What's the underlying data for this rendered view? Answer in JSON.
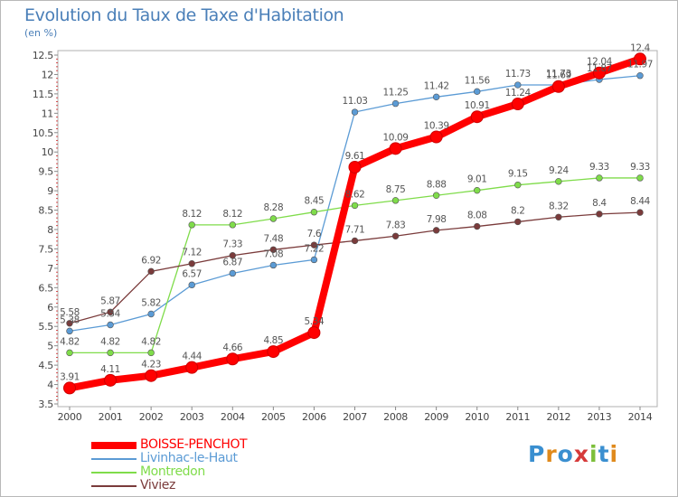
{
  "header": {
    "title": "Evolution du Taux de Taxe d'Habitation",
    "subtitle": "(en %)"
  },
  "logo": {
    "text": "Proxiti",
    "letters": [
      {
        "ch": "P",
        "color": "#3a8fd0"
      },
      {
        "ch": "r",
        "color": "#e08a1c"
      },
      {
        "ch": "o",
        "color": "#3a8fd0"
      },
      {
        "ch": "x",
        "color": "#d63a3a"
      },
      {
        "ch": "i",
        "color": "#7cbf3a"
      },
      {
        "ch": "t",
        "color": "#3a8fd0"
      },
      {
        "ch": "i",
        "color": "#e08a1c"
      }
    ]
  },
  "chart_data": {
    "type": "line",
    "title": "Evolution du Taux de Taxe d'Habitation",
    "ylabel": "(en %)",
    "xlabel": "",
    "x": [
      "2000",
      "2001",
      "2002",
      "2003",
      "2004",
      "2005",
      "2006",
      "2007",
      "2008",
      "2009",
      "2010",
      "2011",
      "2012",
      "2013",
      "2014"
    ],
    "ylim": [
      3.5,
      12.5
    ],
    "yticks": [
      "3.5",
      "4",
      "4.5",
      "5",
      "5.5",
      "6",
      "6.5",
      "7",
      "7.5",
      "8",
      "8.5",
      "9",
      "9.5",
      "10",
      "10.5",
      "11",
      "11.5",
      "12",
      "12.5"
    ],
    "grid": false,
    "legend": "bottom-left",
    "series": [
      {
        "name": "BOISSE-PENCHOT",
        "color": "#ff0000",
        "emphasis": true,
        "values": [
          3.91,
          4.11,
          4.23,
          4.44,
          4.66,
          4.85,
          5.34,
          9.61,
          10.09,
          10.39,
          10.91,
          11.24,
          11.69,
          12.04,
          12.4
        ],
        "labels": [
          "3.91",
          "4.11",
          "4.23",
          "4.44",
          "4.66",
          "4.85",
          "5.34",
          "9.61",
          "10.09",
          "10.39",
          "10.91",
          "11.24",
          "11.69",
          "12.04",
          "12.4"
        ]
      },
      {
        "name": "Livinhac-le-Haut",
        "color": "#5b9bd5",
        "emphasis": false,
        "values": [
          5.38,
          5.54,
          5.82,
          6.57,
          6.87,
          7.08,
          7.22,
          11.03,
          11.25,
          11.42,
          11.56,
          11.73,
          11.73,
          11.87,
          11.97
        ],
        "labels": [
          "5.38",
          "5.54",
          "5.82",
          "6.57",
          "6.87",
          "7.08",
          "7.22",
          "11.03",
          "11.25",
          "11.42",
          "11.56",
          "11.73",
          "11.73",
          "11.87",
          "11.97"
        ]
      },
      {
        "name": "Montredon",
        "color": "#7fdc4a",
        "emphasis": false,
        "values": [
          4.82,
          4.82,
          4.82,
          8.12,
          8.12,
          8.28,
          8.45,
          8.62,
          8.75,
          8.88,
          9.01,
          9.15,
          9.24,
          9.33,
          9.33
        ],
        "labels": [
          "4.82",
          "4.82",
          "4.82",
          "8.12",
          "8.12",
          "8.28",
          "8.45",
          "8.62",
          "8.75",
          "8.88",
          "9.01",
          "9.15",
          "9.24",
          "9.33",
          "9.33"
        ]
      },
      {
        "name": "Viviez",
        "color": "#7a3b3b",
        "emphasis": false,
        "values": [
          5.58,
          5.87,
          6.92,
          7.12,
          7.33,
          7.48,
          7.6,
          7.71,
          7.83,
          7.98,
          8.08,
          8.2,
          8.32,
          8.4,
          8.44
        ],
        "labels": [
          "5.58",
          "5.87",
          "6.92",
          "7.12",
          "7.33",
          "7.48",
          "7.6",
          "7.71",
          "7.83",
          "7.98",
          "8.08",
          "8.2",
          "8.32",
          "8.4",
          "8.44"
        ]
      }
    ]
  }
}
